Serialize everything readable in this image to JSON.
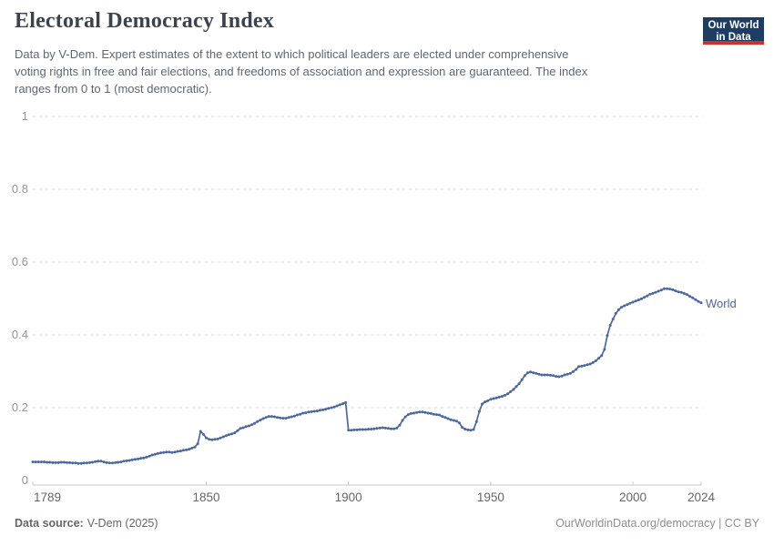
{
  "header": {
    "title": "Electoral Democracy Index",
    "subtitle_lines": [
      "Data by V-Dem. Expert estimates of the extent to which political leaders are elected under comprehensive",
      "voting rights in free and fair elections, and freedoms of association and expression are guaranteed. The index",
      "ranges from 0 to 1 (most democratic)."
    ],
    "logo": {
      "line1": "Our World",
      "line2": "in Data"
    }
  },
  "chart_data": {
    "type": "line",
    "title": "Electoral Democracy Index",
    "xlabel": "",
    "ylabel": "",
    "x_range": [
      1789,
      2024
    ],
    "y_range": [
      0,
      1
    ],
    "x_ticks": [
      1789,
      1850,
      1900,
      1950,
      2000,
      2024
    ],
    "y_ticks": [
      0,
      0.2,
      0.4,
      0.6,
      0.8,
      1
    ],
    "grid": "dashed-horizontal",
    "legend": "end-of-line-label",
    "markers": "yearly-dots",
    "series": [
      {
        "name": "World",
        "color": "#4b67a0",
        "start_year": 1789,
        "end_year": 2024,
        "values": [
          0.051,
          0.051,
          0.051,
          0.051,
          0.051,
          0.05,
          0.05,
          0.049,
          0.049,
          0.049,
          0.05,
          0.05,
          0.049,
          0.049,
          0.048,
          0.048,
          0.047,
          0.047,
          0.048,
          0.048,
          0.049,
          0.05,
          0.052,
          0.053,
          0.053,
          0.051,
          0.049,
          0.048,
          0.048,
          0.049,
          0.05,
          0.051,
          0.053,
          0.054,
          0.055,
          0.057,
          0.058,
          0.059,
          0.061,
          0.062,
          0.064,
          0.067,
          0.07,
          0.072,
          0.074,
          0.076,
          0.077,
          0.078,
          0.078,
          0.077,
          0.078,
          0.08,
          0.081,
          0.083,
          0.084,
          0.086,
          0.089,
          0.092,
          0.101,
          0.135,
          0.127,
          0.117,
          0.113,
          0.112,
          0.113,
          0.114,
          0.117,
          0.12,
          0.123,
          0.126,
          0.128,
          0.131,
          0.137,
          0.143,
          0.145,
          0.148,
          0.15,
          0.153,
          0.157,
          0.162,
          0.166,
          0.17,
          0.173,
          0.176,
          0.176,
          0.175,
          0.173,
          0.172,
          0.171,
          0.171,
          0.173,
          0.175,
          0.177,
          0.18,
          0.182,
          0.185,
          0.186,
          0.188,
          0.189,
          0.19,
          0.191,
          0.193,
          0.194,
          0.196,
          0.198,
          0.2,
          0.202,
          0.205,
          0.208,
          0.211,
          0.214,
          0.138,
          0.138,
          0.139,
          0.139,
          0.14,
          0.14,
          0.14,
          0.141,
          0.141,
          0.142,
          0.143,
          0.144,
          0.145,
          0.144,
          0.143,
          0.142,
          0.142,
          0.144,
          0.152,
          0.165,
          0.175,
          0.181,
          0.184,
          0.185,
          0.187,
          0.188,
          0.188,
          0.187,
          0.185,
          0.184,
          0.182,
          0.181,
          0.18,
          0.176,
          0.173,
          0.17,
          0.167,
          0.165,
          0.163,
          0.158,
          0.146,
          0.141,
          0.139,
          0.138,
          0.14,
          0.162,
          0.19,
          0.21,
          0.216,
          0.219,
          0.223,
          0.225,
          0.227,
          0.229,
          0.231,
          0.234,
          0.238,
          0.244,
          0.25,
          0.258,
          0.266,
          0.277,
          0.288,
          0.296,
          0.298,
          0.296,
          0.294,
          0.292,
          0.29,
          0.29,
          0.29,
          0.289,
          0.288,
          0.286,
          0.285,
          0.287,
          0.29,
          0.292,
          0.294,
          0.299,
          0.305,
          0.313,
          0.314,
          0.316,
          0.318,
          0.32,
          0.324,
          0.329,
          0.336,
          0.343,
          0.36,
          0.398,
          0.426,
          0.443,
          0.459,
          0.469,
          0.476,
          0.48,
          0.483,
          0.487,
          0.49,
          0.493,
          0.496,
          0.499,
          0.503,
          0.507,
          0.512,
          0.514,
          0.517,
          0.52,
          0.523,
          0.527,
          0.527,
          0.526,
          0.524,
          0.521,
          0.518,
          0.517,
          0.514,
          0.511,
          0.506,
          0.502,
          0.497,
          0.492,
          0.488
        ]
      }
    ]
  },
  "footer": {
    "source_label": "Data source:",
    "source_value": "V-Dem (2025)",
    "right_text": "OurWorldinData.org/democracy | CC BY"
  },
  "colors": {
    "grid": "#dadada",
    "axis": "#c8c8c8",
    "axis_label": "#959595",
    "tick_label": "#666666",
    "title": "#3c434c",
    "subtitle": "#5d6772",
    "footer_left": "#63676b",
    "footer_right": "#8a8e93",
    "logo_bg": "#1d3d63",
    "logo_accent": "#cf3224",
    "background": "#ffffff"
  }
}
